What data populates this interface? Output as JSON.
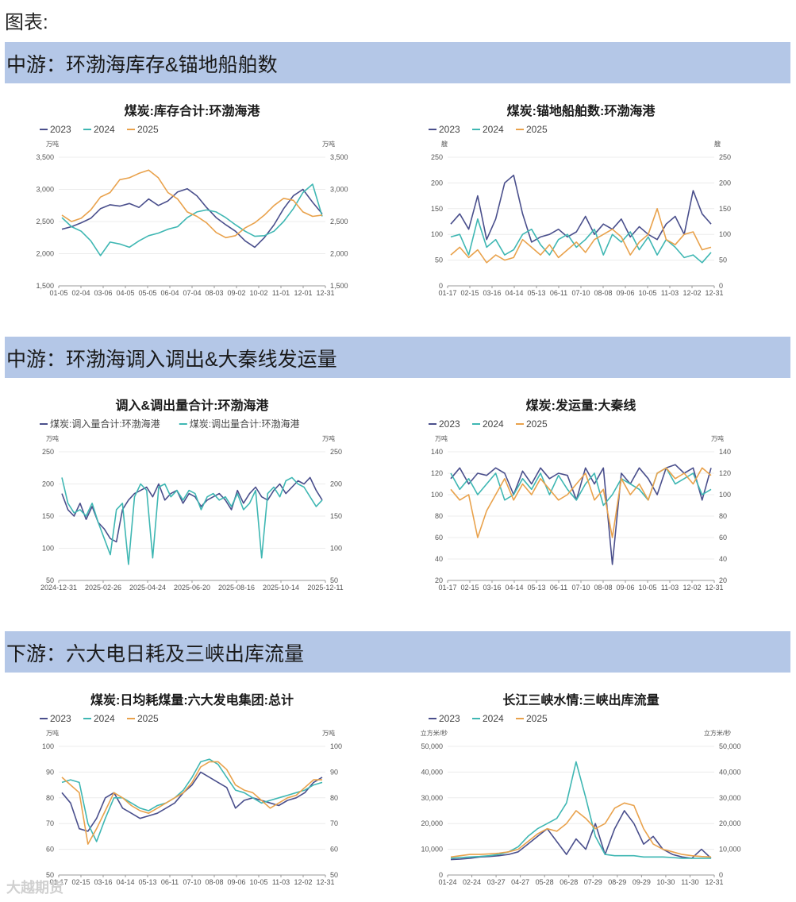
{
  "page_title": "图表:",
  "sections": [
    {
      "label": "中游：环渤海库存&锚地船舶数"
    },
    {
      "label": "中游：环渤海调入调出&大秦线发运量"
    },
    {
      "label": "下游：六大电日耗及三峡出库流量"
    }
  ],
  "colors": {
    "c2023": "#4a4f8c",
    "c2024": "#3fb7b3",
    "c2025": "#e9a24c"
  },
  "watermark": "大越期货",
  "chart_data": [
    {
      "type": "line",
      "title": "煤炭:库存合计:环渤海港",
      "unit_left": "万吨",
      "unit_right": "万吨",
      "ylim": [
        1500,
        3500
      ],
      "yticks": [
        "1,500",
        "2,000",
        "2,500",
        "3,000",
        "3,500"
      ],
      "ytick_values": [
        1500,
        2000,
        2500,
        3000,
        3500
      ],
      "xticks": [
        "01-05",
        "02-04",
        "03-06",
        "04-05",
        "05-05",
        "06-04",
        "07-04",
        "08-03",
        "09-02",
        "10-02",
        "11-01",
        "12-01",
        "12-31"
      ],
      "series": [
        {
          "name": "2023",
          "values": [
            2380,
            2420,
            2480,
            2550,
            2700,
            2760,
            2740,
            2780,
            2720,
            2850,
            2750,
            2820,
            2960,
            3010,
            2900,
            2720,
            2560,
            2450,
            2350,
            2200,
            2100,
            2250,
            2450,
            2700,
            2900,
            3000,
            2800,
            2620
          ]
        },
        {
          "name": "2024",
          "values": [
            2560,
            2420,
            2350,
            2200,
            1970,
            2180,
            2150,
            2100,
            2200,
            2280,
            2320,
            2380,
            2420,
            2560,
            2650,
            2680,
            2650,
            2560,
            2450,
            2350,
            2270,
            2280,
            2350,
            2500,
            2700,
            2950,
            3080,
            2580
          ]
        },
        {
          "name": "2025",
          "values": [
            2600,
            2500,
            2550,
            2680,
            2880,
            2950,
            3150,
            3180,
            3250,
            3300,
            3180,
            2950,
            2850,
            2650,
            2580,
            2480,
            2330,
            2250,
            2280,
            2400,
            2480,
            2600,
            2750,
            2860,
            2830,
            2650,
            2580,
            2600
          ]
        }
      ]
    },
    {
      "type": "line",
      "title": "煤炭:锚地船舶数:环渤海港",
      "unit_left": "艘",
      "unit_right": "艘",
      "ylim": [
        0,
        250
      ],
      "yticks": [
        "0",
        "50",
        "100",
        "150",
        "200",
        "250"
      ],
      "ytick_values": [
        0,
        50,
        100,
        150,
        200,
        250
      ],
      "xticks": [
        "01-17",
        "02-15",
        "03-16",
        "04-14",
        "05-13",
        "06-11",
        "07-10",
        "08-08",
        "09-06",
        "10-05",
        "11-03",
        "12-02",
        "12-31"
      ],
      "series": [
        {
          "name": "2023",
          "values": [
            120,
            140,
            110,
            175,
            90,
            130,
            200,
            215,
            140,
            85,
            95,
            100,
            110,
            95,
            105,
            135,
            100,
            120,
            110,
            130,
            95,
            115,
            100,
            90,
            120,
            135,
            100,
            185,
            140,
            120
          ]
        },
        {
          "name": "2024",
          "values": [
            95,
            100,
            60,
            130,
            75,
            90,
            60,
            70,
            100,
            110,
            80,
            60,
            90,
            100,
            75,
            90,
            110,
            60,
            100,
            85,
            105,
            70,
            95,
            60,
            90,
            75,
            55,
            60,
            45,
            65
          ]
        },
        {
          "name": "2025",
          "values": [
            60,
            75,
            55,
            70,
            45,
            60,
            50,
            55,
            90,
            75,
            60,
            80,
            55,
            70,
            85,
            65,
            90,
            100,
            110,
            95,
            60,
            85,
            100,
            150,
            90,
            80,
            100,
            105,
            70,
            75
          ]
        }
      ]
    },
    {
      "type": "line",
      "title": "调入&调出量合计:环渤海港",
      "unit_left": "万吨",
      "unit_right": "万吨",
      "ylim": [
        50,
        250
      ],
      "yticks": [
        "50",
        "100",
        "150",
        "200",
        "250"
      ],
      "ytick_values": [
        50,
        100,
        150,
        200,
        250
      ],
      "xticks": [
        "2024-12-31",
        "2025-02-26",
        "2025-04-24",
        "2025-06-20",
        "2025-08-16",
        "2025-10-14",
        "2025-12-11"
      ],
      "series": [
        {
          "name": "煤炭:调入量合计:环渤海港",
          "values": [
            185,
            160,
            150,
            170,
            145,
            165,
            140,
            130,
            115,
            110,
            160,
            175,
            185,
            190,
            195,
            180,
            200,
            175,
            185,
            190,
            170,
            185,
            180,
            165,
            175,
            180,
            185,
            175,
            160,
            190,
            170,
            185,
            195,
            180,
            175,
            190,
            200,
            185,
            195,
            205,
            200,
            210,
            190,
            175
          ]
        },
        {
          "name": "煤炭:调出量合计:环渤海港",
          "values": [
            210,
            170,
            155,
            160,
            150,
            170,
            140,
            115,
            90,
            160,
            170,
            75,
            180,
            200,
            190,
            85,
            195,
            200,
            180,
            190,
            175,
            190,
            185,
            160,
            180,
            185,
            175,
            180,
            165,
            185,
            160,
            170,
            190,
            85,
            185,
            195,
            180,
            205,
            210,
            200,
            195,
            180,
            165,
            175
          ]
        }
      ]
    },
    {
      "type": "line",
      "title": "煤炭:发运量:大秦线",
      "unit_left": "万吨",
      "unit_right": "万吨",
      "ylim": [
        20,
        140
      ],
      "yticks": [
        "20",
        "40",
        "60",
        "80",
        "100",
        "120",
        "140"
      ],
      "ytick_values": [
        20,
        40,
        60,
        80,
        100,
        120,
        140
      ],
      "xticks": [
        "01-17",
        "02-15",
        "03-16",
        "04-14",
        "05-13",
        "06-11",
        "07-10",
        "08-08",
        "09-06",
        "10-05",
        "11-03",
        "12-02",
        "12-31"
      ],
      "series": [
        {
          "name": "2023",
          "values": [
            115,
            125,
            110,
            120,
            118,
            125,
            120,
            100,
            122,
            110,
            125,
            115,
            120,
            118,
            95,
            125,
            110,
            125,
            35,
            120,
            110,
            125,
            115,
            100,
            125,
            128,
            120,
            125,
            95,
            125
          ]
        },
        {
          "name": "2024",
          "values": [
            120,
            105,
            115,
            100,
            110,
            120,
            95,
            100,
            115,
            105,
            120,
            100,
            118,
            105,
            95,
            110,
            120,
            90,
            100,
            115,
            110,
            105,
            95,
            120,
            125,
            110,
            115,
            120,
            100,
            105
          ]
        },
        {
          "name": "2025",
          "values": [
            105,
            95,
            100,
            60,
            85,
            100,
            115,
            95,
            110,
            100,
            115,
            105,
            95,
            100,
            110,
            120,
            95,
            105,
            60,
            115,
            100,
            110,
            95,
            120,
            125,
            115,
            120,
            110,
            125,
            118
          ]
        }
      ]
    },
    {
      "type": "line",
      "title": "煤炭:日均耗煤量:六大发电集团:总计",
      "unit_left": "万吨",
      "unit_right": "万吨",
      "ylim": [
        50,
        100
      ],
      "yticks": [
        "50",
        "60",
        "70",
        "80",
        "90",
        "100"
      ],
      "ytick_values": [
        50,
        60,
        70,
        80,
        90,
        100
      ],
      "xticks": [
        "01-17",
        "02-15",
        "03-16",
        "04-14",
        "05-13",
        "06-11",
        "07-10",
        "08-08",
        "09-06",
        "10-05",
        "11-03",
        "12-02",
        "12-31"
      ],
      "series": [
        {
          "name": "2023",
          "values": [
            82,
            78,
            68,
            67,
            72,
            80,
            82,
            76,
            74,
            72,
            73,
            74,
            76,
            78,
            82,
            85,
            90,
            88,
            86,
            84,
            76,
            79,
            80,
            79,
            78,
            77,
            79,
            80,
            82,
            86,
            88
          ]
        },
        {
          "name": "2024",
          "values": [
            86,
            87,
            86,
            70,
            63,
            72,
            80,
            80,
            78,
            76,
            75,
            77,
            78,
            80,
            83,
            88,
            94,
            95,
            93,
            88,
            83,
            82,
            80,
            78,
            79,
            80,
            81,
            82,
            83,
            85,
            86
          ]
        },
        {
          "name": "2025",
          "values": [
            88,
            85,
            82,
            62,
            68,
            75,
            82,
            80,
            77,
            75,
            74,
            76,
            78,
            80,
            82,
            86,
            92,
            94,
            94,
            91,
            85,
            83,
            82,
            79,
            76,
            78,
            80,
            81,
            84,
            87,
            87
          ]
        }
      ]
    },
    {
      "type": "line",
      "title": "长江三峡水情:三峡出库流量",
      "unit_left": "立方米/秒",
      "unit_right": "立方米/秒",
      "ylim": [
        0,
        50000
      ],
      "yticks": [
        "0",
        "10,000",
        "20,000",
        "30,000",
        "40,000",
        "50,000"
      ],
      "ytick_values": [
        0,
        10000,
        20000,
        30000,
        40000,
        50000
      ],
      "xticks": [
        "01-24",
        "02-24",
        "03-27",
        "04-27",
        "05-28",
        "06-28",
        "07-29",
        "08-29",
        "09-29",
        "10-30",
        "11-30",
        "12-31"
      ],
      "series": [
        {
          "name": "2023",
          "values": [
            6000,
            6200,
            6500,
            7000,
            7200,
            7500,
            8000,
            9000,
            12000,
            15000,
            18000,
            13000,
            8000,
            14000,
            10000,
            20000,
            8000,
            18000,
            25000,
            20000,
            12000,
            15000,
            10000,
            8000,
            7000,
            6500,
            10000,
            6500
          ]
        },
        {
          "name": "2024",
          "values": [
            6500,
            6800,
            7000,
            7200,
            7500,
            8000,
            9000,
            11000,
            15000,
            18000,
            20000,
            22000,
            28000,
            44000,
            30000,
            15000,
            8000,
            7500,
            7500,
            7500,
            7000,
            7000,
            7000,
            6800,
            6500,
            6500,
            6500,
            6500
          ]
        },
        {
          "name": "2025",
          "values": [
            7000,
            7500,
            8000,
            8000,
            8200,
            8500,
            9000,
            10000,
            13000,
            16000,
            18000,
            17000,
            20000,
            25000,
            22000,
            18000,
            20000,
            26000,
            28000,
            27000,
            18000,
            12000,
            10000,
            9000,
            8000,
            7500,
            7200,
            7000
          ]
        }
      ]
    }
  ]
}
